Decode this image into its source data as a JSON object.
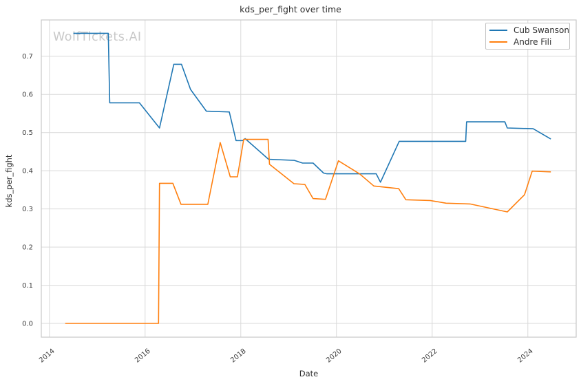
{
  "figure": {
    "title": "kds_per_fight over time",
    "watermark": "WolfTickets.AI",
    "xlabel": "Date",
    "ylabel": "kds_per_fight",
    "background_color": "#ffffff",
    "grid_color": "#d9d9d9",
    "text_color": "#2e2e2e"
  },
  "legend": {
    "position": "upper right",
    "items": [
      {
        "label": "Cub Swanson",
        "color": "#1f77b4"
      },
      {
        "label": "Andre Fili",
        "color": "#ff7f0e"
      }
    ]
  },
  "chart_data": {
    "type": "line",
    "title": "kds_per_fight over time",
    "xlabel": "Date",
    "ylabel": "kds_per_fight",
    "xlim": [
      2013.83,
      2025.01
    ],
    "ylim": [
      -0.036,
      0.795
    ],
    "x_ticks": [
      2014,
      2016,
      2018,
      2020,
      2022,
      2024
    ],
    "y_ticks": [
      0.0,
      0.1,
      0.2,
      0.3,
      0.4,
      0.5,
      0.6,
      0.7
    ],
    "grid": true,
    "legend_position": "upper right",
    "series": [
      {
        "name": "Cub Swanson",
        "color": "#1f77b4",
        "points": [
          [
            2014.5,
            0.76
          ],
          [
            2015.23,
            0.76
          ],
          [
            2015.26,
            0.578
          ],
          [
            2015.88,
            0.578
          ],
          [
            2016.3,
            0.512
          ],
          [
            2016.6,
            0.679
          ],
          [
            2016.76,
            0.679
          ],
          [
            2016.95,
            0.613
          ],
          [
            2017.28,
            0.556
          ],
          [
            2017.76,
            0.554
          ],
          [
            2017.9,
            0.479
          ],
          [
            2018.04,
            0.479
          ],
          [
            2018.09,
            0.484
          ],
          [
            2018.58,
            0.43
          ],
          [
            2019.12,
            0.427
          ],
          [
            2019.29,
            0.42
          ],
          [
            2019.51,
            0.42
          ],
          [
            2019.73,
            0.394
          ],
          [
            2019.8,
            0.392
          ],
          [
            2020.83,
            0.392
          ],
          [
            2020.92,
            0.37
          ],
          [
            2021.31,
            0.477
          ],
          [
            2022.7,
            0.477
          ],
          [
            2022.72,
            0.528
          ],
          [
            2023.52,
            0.528
          ],
          [
            2023.57,
            0.512
          ],
          [
            2024.11,
            0.51
          ],
          [
            2024.48,
            0.483
          ]
        ]
      },
      {
        "name": "Andre Fili",
        "color": "#ff7f0e",
        "points": [
          [
            2014.33,
            0.0
          ],
          [
            2016.28,
            0.0
          ],
          [
            2016.3,
            0.367
          ],
          [
            2016.58,
            0.367
          ],
          [
            2016.75,
            0.312
          ],
          [
            2017.31,
            0.312
          ],
          [
            2017.57,
            0.474
          ],
          [
            2017.78,
            0.384
          ],
          [
            2017.93,
            0.384
          ],
          [
            2018.06,
            0.482
          ],
          [
            2018.57,
            0.482
          ],
          [
            2018.6,
            0.417
          ],
          [
            2019.11,
            0.366
          ],
          [
            2019.34,
            0.364
          ],
          [
            2019.51,
            0.327
          ],
          [
            2019.77,
            0.325
          ],
          [
            2020.04,
            0.426
          ],
          [
            2020.49,
            0.391
          ],
          [
            2020.78,
            0.36
          ],
          [
            2021.3,
            0.353
          ],
          [
            2021.45,
            0.324
          ],
          [
            2021.96,
            0.322
          ],
          [
            2022.29,
            0.315
          ],
          [
            2022.79,
            0.313
          ],
          [
            2023.57,
            0.292
          ],
          [
            2023.93,
            0.337
          ],
          [
            2024.09,
            0.399
          ],
          [
            2024.48,
            0.397
          ]
        ]
      }
    ]
  }
}
